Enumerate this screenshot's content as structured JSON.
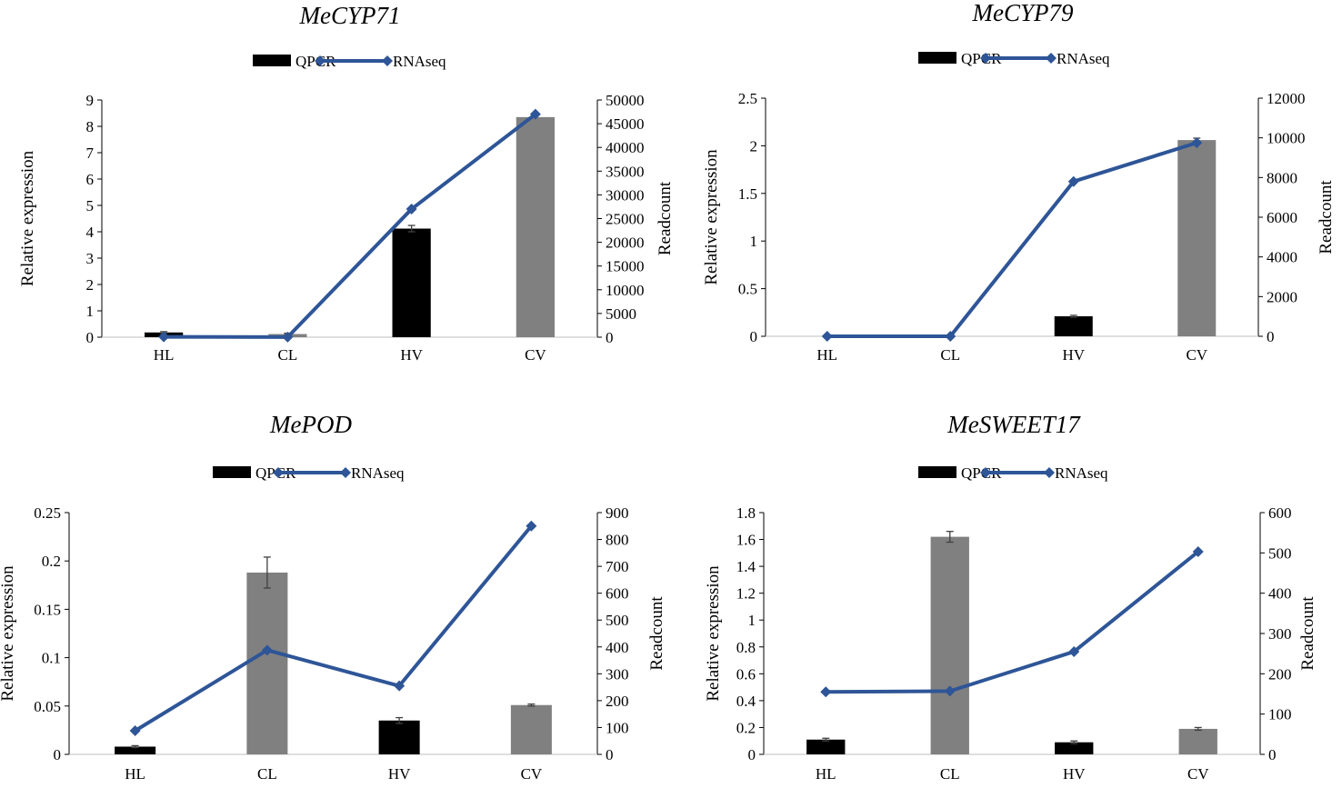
{
  "colors": {
    "qpcr_black": "#000000",
    "qpcr_gray": "#808080",
    "line": "#2e5597",
    "axis": "#000000",
    "error": "#404040"
  },
  "legend": {
    "qpcr": "QPCR",
    "rnaseq": "RNAseq"
  },
  "chart_data": [
    {
      "type": "bar+line",
      "title": "MeCYP71",
      "categories": [
        "HL",
        "CL",
        "HV",
        "CV"
      ],
      "ylabel": "Relative expression",
      "y2label": "Readcount",
      "ylim": [
        0,
        9
      ],
      "yticks": [
        "0",
        "1",
        "2",
        "3",
        "4",
        "5",
        "6",
        "7",
        "8",
        "9"
      ],
      "y2lim": [
        0,
        50000
      ],
      "y2ticks": [
        "0",
        "5000",
        "10000",
        "15000",
        "20000",
        "25000",
        "30000",
        "35000",
        "40000",
        "45000",
        "50000"
      ],
      "series": [
        {
          "name": "QPCR",
          "kind": "bar",
          "values": [
            0.18,
            0.12,
            4.12,
            8.35
          ],
          "errors": [
            0.03,
            0.03,
            0.12,
            0.0
          ],
          "bar_colors": [
            "#000000",
            "#808080",
            "#000000",
            "#808080"
          ]
        },
        {
          "name": "RNAseq",
          "kind": "line",
          "axis": "right",
          "values": [
            60,
            30,
            27000,
            47000
          ]
        }
      ]
    },
    {
      "type": "bar+line",
      "title": "MeCYP79",
      "categories": [
        "HL",
        "CL",
        "HV",
        "CV"
      ],
      "ylabel": "Relative expression",
      "y2label": "Readcount",
      "ylim": [
        0,
        2.5
      ],
      "yticks": [
        "0",
        "0.5",
        "1",
        "1.5",
        "2",
        "2.5"
      ],
      "y2lim": [
        0,
        12000
      ],
      "y2ticks": [
        "0",
        "2000",
        "4000",
        "6000",
        "8000",
        "10000",
        "12000"
      ],
      "series": [
        {
          "name": "QPCR",
          "kind": "bar",
          "values": [
            0.0,
            0.0,
            0.21,
            2.06
          ],
          "errors": [
            0,
            0,
            0.01,
            0.02
          ],
          "bar_colors": [
            "#000000",
            "#808080",
            "#000000",
            "#808080"
          ]
        },
        {
          "name": "RNAseq",
          "kind": "line",
          "axis": "right",
          "values": [
            0,
            0,
            7800,
            9750
          ]
        }
      ]
    },
    {
      "type": "bar+line",
      "title": "MePOD",
      "categories": [
        "HL",
        "CL",
        "HV",
        "CV"
      ],
      "ylabel": "Relative expression",
      "y2label": "Readcount",
      "ylim": [
        0,
        0.25
      ],
      "yticks": [
        "0",
        "0.05",
        "0.1",
        "0.15",
        "0.2",
        "0.25"
      ],
      "y2lim": [
        0,
        900
      ],
      "y2ticks": [
        "0",
        "100",
        "200",
        "300",
        "400",
        "500",
        "600",
        "700",
        "800",
        "900"
      ],
      "series": [
        {
          "name": "QPCR",
          "kind": "bar",
          "values": [
            0.008,
            0.188,
            0.035,
            0.051
          ],
          "errors": [
            0.001,
            0.016,
            0.003,
            0.001
          ],
          "bar_colors": [
            "#000000",
            "#808080",
            "#000000",
            "#808080"
          ]
        },
        {
          "name": "RNAseq",
          "kind": "line",
          "axis": "right",
          "values": [
            88,
            388,
            255,
            850
          ]
        }
      ]
    },
    {
      "type": "bar+line",
      "title": "MeSWEET17",
      "categories": [
        "HL",
        "CL",
        "HV",
        "CV"
      ],
      "ylabel": "Relative expression",
      "y2label": "Readcount",
      "ylim": [
        0,
        1.8
      ],
      "yticks": [
        "0",
        "0.2",
        "0.4",
        "0.6",
        "0.8",
        "1",
        "1.2",
        "1.4",
        "1.6",
        "1.8"
      ],
      "y2lim": [
        0,
        600
      ],
      "y2ticks": [
        "0",
        "100",
        "200",
        "300",
        "400",
        "500",
        "600"
      ],
      "series": [
        {
          "name": "QPCR",
          "kind": "bar",
          "values": [
            0.11,
            1.62,
            0.09,
            0.19
          ],
          "errors": [
            0.01,
            0.04,
            0.01,
            0.01
          ],
          "bar_colors": [
            "#000000",
            "#808080",
            "#000000",
            "#808080"
          ]
        },
        {
          "name": "RNAseq",
          "kind": "line",
          "axis": "right",
          "values": [
            155,
            157,
            255,
            503
          ]
        }
      ]
    }
  ]
}
